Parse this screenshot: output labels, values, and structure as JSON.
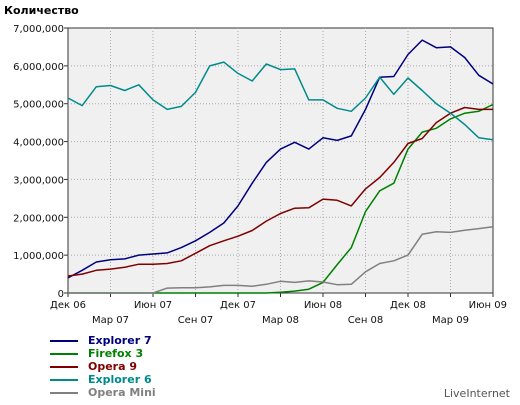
{
  "chart_data": {
    "type": "line",
    "ylabel": "Количество",
    "ylim": [
      0,
      7000000
    ],
    "yticks": [
      "0",
      "1,000,000",
      "2,000,000",
      "3,000,000",
      "4,000,000",
      "5,000,000",
      "6,000,000",
      "7,000,000"
    ],
    "ytick_values": [
      0,
      1000000,
      2000000,
      3000000,
      4000000,
      5000000,
      6000000,
      7000000
    ],
    "xticks_upper": [
      "Дек 06",
      "Июн 07",
      "Дек 07",
      "Июн 08",
      "Дек 08",
      "Июн 09"
    ],
    "xticks_lower": [
      "Мар 07",
      "Сен 07",
      "Мар 08",
      "Сен 08",
      "Мар 09"
    ],
    "grid": true,
    "legend_position": "bottom-left",
    "x_months": 30,
    "series": [
      {
        "name": "Explorer 7",
        "color": "#00007f",
        "values": [
          400000,
          600000,
          820000,
          880000,
          900000,
          1000000,
          1030000,
          1060000,
          1200000,
          1380000,
          1600000,
          1850000,
          2300000,
          2900000,
          3450000,
          3800000,
          3980000,
          3800000,
          4100000,
          4030000,
          4150000,
          4850000,
          5700000,
          5720000,
          6300000,
          6680000,
          6480000,
          6500000,
          6220000,
          5750000,
          5520000
        ]
      },
      {
        "name": "Firefox 3",
        "color": "#008000",
        "values": [
          0,
          0,
          0,
          0,
          0,
          0,
          0,
          0,
          0,
          0,
          0,
          0,
          0,
          0,
          0,
          20000,
          50000,
          100000,
          280000,
          750000,
          1200000,
          2150000,
          2700000,
          2900000,
          3800000,
          4250000,
          4350000,
          4600000,
          4750000,
          4800000,
          4980000
        ]
      },
      {
        "name": "Opera 9",
        "color": "#800000",
        "values": [
          450000,
          500000,
          600000,
          630000,
          680000,
          760000,
          760000,
          780000,
          850000,
          1050000,
          1250000,
          1380000,
          1500000,
          1650000,
          1900000,
          2100000,
          2240000,
          2250000,
          2480000,
          2450000,
          2300000,
          2750000,
          3050000,
          3450000,
          3950000,
          4080000,
          4500000,
          4750000,
          4900000,
          4850000,
          4850000
        ]
      },
      {
        "name": "Explorer 6",
        "color": "#008b8b",
        "values": [
          5150000,
          4950000,
          5450000,
          5480000,
          5350000,
          5500000,
          5100000,
          4850000,
          4930000,
          5300000,
          6000000,
          6100000,
          5800000,
          5600000,
          6050000,
          5900000,
          5920000,
          5100000,
          5100000,
          4880000,
          4800000,
          5150000,
          5700000,
          5250000,
          5680000,
          5350000,
          5000000,
          4750000,
          4450000,
          4100000,
          4050000
        ]
      },
      {
        "name": "Opera Mini",
        "color": "#808080",
        "values": [
          0,
          0,
          0,
          0,
          0,
          0,
          0,
          130000,
          140000,
          140000,
          160000,
          200000,
          200000,
          180000,
          230000,
          310000,
          280000,
          320000,
          290000,
          220000,
          230000,
          560000,
          780000,
          850000,
          1000000,
          1550000,
          1620000,
          1600000,
          1660000,
          1700000,
          1750000
        ]
      }
    ]
  },
  "credit": "LiveInternet"
}
